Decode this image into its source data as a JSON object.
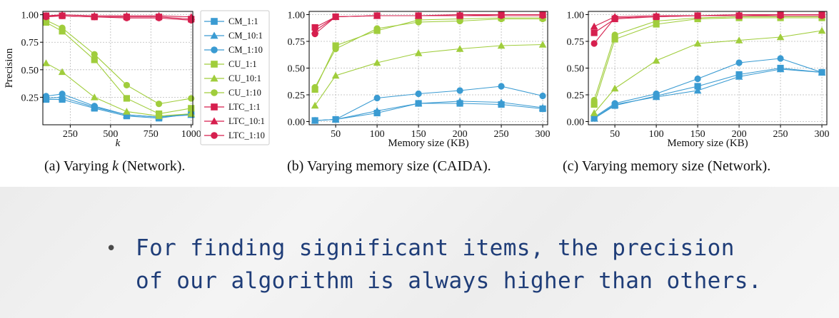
{
  "captions": {
    "a_prefix": "(a) Varying ",
    "a_var": "k",
    "a_suffix": " (Network).",
    "b": "(b) Varying memory size (CAIDA).",
    "c": "(c) Varying memory size (Network)."
  },
  "bullet": {
    "line1": "For finding significant items, the precision",
    "line2": "of our algorithm is always higher than others."
  },
  "legend": [
    {
      "name": "CM_1:1",
      "color": "#3a9bd2",
      "marker": "square"
    },
    {
      "name": "CM_10:1",
      "color": "#3a9bd2",
      "marker": "triangle"
    },
    {
      "name": "CM_1:10",
      "color": "#3a9bd2",
      "marker": "circle"
    },
    {
      "name": "CU_1:1",
      "color": "#a0cd3c",
      "marker": "square"
    },
    {
      "name": "CU_10:1",
      "color": "#a0cd3c",
      "marker": "triangle"
    },
    {
      "name": "CU_1:10",
      "color": "#a0cd3c",
      "marker": "circle"
    },
    {
      "name": "LTC_1:1",
      "color": "#d61f4e",
      "marker": "square"
    },
    {
      "name": "LTC_10:1",
      "color": "#d61f4e",
      "marker": "triangle"
    },
    {
      "name": "LTC_1:10",
      "color": "#d61f4e",
      "marker": "circle"
    }
  ],
  "chart_data": [
    {
      "type": "line",
      "xlabel": "k",
      "ylabel": "Precision",
      "xlim": [
        80,
        1010
      ],
      "ylim": [
        0.0,
        1.03
      ],
      "xticks": [
        250,
        500,
        750,
        1000
      ],
      "xtick_labels": [
        "250",
        "500",
        "750",
        "1000"
      ],
      "yticks": [
        0.25,
        0.5,
        0.75,
        1.0
      ],
      "ytick_labels": [
        "0.25",
        "0.50",
        "0.75",
        "1.00"
      ],
      "grid": true,
      "x": [
        100,
        200,
        400,
        600,
        800,
        1000
      ],
      "series": [
        {
          "name": "CM_1:1",
          "values": [
            0.23,
            0.23,
            0.15,
            0.08,
            0.06,
            0.1
          ]
        },
        {
          "name": "CM_10:1",
          "values": [
            0.24,
            0.25,
            0.16,
            0.09,
            0.07,
            0.09
          ]
        },
        {
          "name": "CM_1:10",
          "values": [
            0.26,
            0.28,
            0.17,
            0.09,
            0.07,
            0.1
          ]
        },
        {
          "name": "CU_1:1",
          "values": [
            0.93,
            0.85,
            0.59,
            0.24,
            0.1,
            0.15
          ]
        },
        {
          "name": "CU_10:1",
          "values": [
            0.56,
            0.48,
            0.25,
            0.12,
            0.08,
            0.1
          ]
        },
        {
          "name": "CU_1:10",
          "values": [
            0.95,
            0.88,
            0.64,
            0.36,
            0.19,
            0.24
          ]
        },
        {
          "name": "LTC_1:1",
          "values": [
            0.99,
            0.99,
            0.98,
            0.98,
            0.98,
            0.96
          ]
        },
        {
          "name": "LTC_10:1",
          "values": [
            0.99,
            1.0,
            0.99,
            0.99,
            0.99,
            0.98
          ]
        },
        {
          "name": "LTC_1:10",
          "values": [
            0.98,
            0.99,
            0.98,
            0.97,
            0.97,
            0.95
          ]
        }
      ]
    },
    {
      "type": "line",
      "xlabel": "Memory size (KB)",
      "ylabel": "",
      "xlim": [
        18,
        306
      ],
      "ylim": [
        -0.03,
        1.03
      ],
      "xticks": [
        50,
        100,
        150,
        200,
        250,
        300
      ],
      "xtick_labels": [
        "50",
        "100",
        "150",
        "200",
        "250",
        "300"
      ],
      "yticks": [
        0.0,
        0.25,
        0.5,
        0.75,
        1.0
      ],
      "ytick_labels": [
        "0.00",
        "0.25",
        "0.50",
        "0.75",
        "1.00"
      ],
      "grid": true,
      "x": [
        25,
        50,
        100,
        150,
        200,
        250,
        300
      ],
      "series": [
        {
          "name": "CM_1:1",
          "values": [
            0.01,
            0.02,
            0.08,
            0.17,
            0.17,
            0.16,
            0.12
          ]
        },
        {
          "name": "CM_10:1",
          "values": [
            0.01,
            0.02,
            0.1,
            0.17,
            0.19,
            0.18,
            0.13
          ]
        },
        {
          "name": "CM_1:10",
          "values": [
            0.01,
            0.02,
            0.1,
            0.17,
            0.21,
            0.2,
            0.16
          ]
        },
        {
          "name": "CU_1:1",
          "values": [
            0.3,
            0.71,
            0.85,
            0.95,
            0.96,
            0.97,
            0.97
          ]
        },
        {
          "name": "CU_10:1",
          "values": [
            0.15,
            0.43,
            0.55,
            0.64,
            0.68,
            0.71,
            0.72
          ]
        },
        {
          "name": "CU_1:10",
          "values": [
            0.32,
            0.68,
            0.87,
            0.93,
            0.94,
            0.96,
            0.96
          ]
        },
        {
          "name": "LTC_1:1",
          "values": [
            0.88,
            0.98,
            0.99,
            0.99,
            0.99,
            1.0,
            1.0
          ]
        },
        {
          "name": "LTC_10:1",
          "values": [
            0.85,
            0.98,
            0.99,
            0.99,
            1.0,
            1.0,
            1.0
          ]
        },
        {
          "name": "LTC_1:10",
          "values": [
            0.82,
            0.98,
            0.99,
            0.99,
            0.99,
            0.99,
            0.99
          ]
        }
      ],
      "cm_circle_override": [
        0.01,
        0.02,
        0.22,
        0.26,
        0.29,
        0.33,
        0.24
      ]
    },
    {
      "type": "line",
      "xlabel": "Memory size (KB)",
      "ylabel": "",
      "xlim": [
        18,
        306
      ],
      "ylim": [
        -0.03,
        1.03
      ],
      "xticks": [
        50,
        100,
        150,
        200,
        250,
        300
      ],
      "xtick_labels": [
        "50",
        "100",
        "150",
        "200",
        "250",
        "300"
      ],
      "yticks": [
        0.0,
        0.25,
        0.5,
        0.75,
        1.0
      ],
      "ytick_labels": [
        "0.00",
        "0.25",
        "0.50",
        "0.75",
        "1.00"
      ],
      "grid": true,
      "x": [
        25,
        50,
        100,
        150,
        200,
        250,
        300
      ],
      "series": [
        {
          "name": "CM_1:1",
          "values": [
            0.03,
            0.15,
            0.24,
            0.33,
            0.44,
            0.5,
            0.46
          ]
        },
        {
          "name": "CM_10:1",
          "values": [
            0.03,
            0.16,
            0.23,
            0.29,
            0.42,
            0.49,
            0.46
          ]
        },
        {
          "name": "CM_1:10",
          "values": [
            0.04,
            0.17,
            0.26,
            0.4,
            0.55,
            0.59,
            0.46
          ]
        },
        {
          "name": "CU_1:1",
          "values": [
            0.16,
            0.77,
            0.91,
            0.96,
            0.97,
            0.97,
            0.97
          ]
        },
        {
          "name": "CU_10:1",
          "values": [
            0.08,
            0.31,
            0.57,
            0.73,
            0.76,
            0.79,
            0.85
          ]
        },
        {
          "name": "CU_1:10",
          "values": [
            0.2,
            0.81,
            0.94,
            0.97,
            0.98,
            0.98,
            0.98
          ]
        },
        {
          "name": "LTC_1:1",
          "values": [
            0.83,
            0.96,
            0.98,
            0.99,
            0.99,
            1.0,
            1.0
          ]
        },
        {
          "name": "LTC_10:1",
          "values": [
            0.89,
            0.98,
            0.99,
            0.99,
            1.0,
            1.0,
            1.0
          ]
        },
        {
          "name": "LTC_1:10",
          "values": [
            0.73,
            0.97,
            0.98,
            0.99,
            0.99,
            0.99,
            0.99
          ]
        }
      ]
    }
  ]
}
